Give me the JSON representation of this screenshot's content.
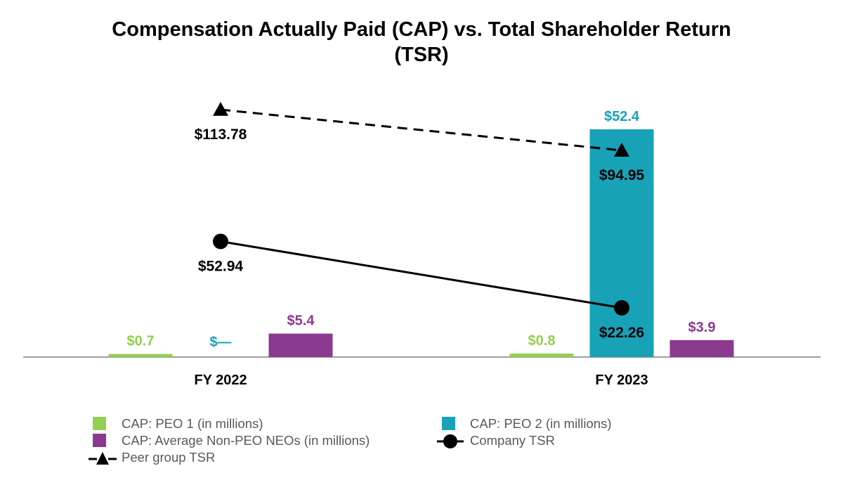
{
  "title_lines": [
    "Compensation Actually Paid (CAP) vs. Total Shareholder Return",
    "(TSR)"
  ],
  "chart_data": {
    "type": "bar",
    "categories": [
      "FY 2022",
      "FY 2023"
    ],
    "bar_axis": {
      "ylim": [
        0,
        60
      ],
      "unit": "$ millions"
    },
    "line_axis": {
      "ylim": [
        0,
        130
      ],
      "unit": "$"
    },
    "series": [
      {
        "name": "CAP: PEO 1 (in millions)",
        "kind": "bar",
        "color": "#92D050",
        "values": [
          0.7,
          0.8
        ],
        "labels": [
          "$0.7",
          "$0.8"
        ]
      },
      {
        "name": "CAP: PEO 2 (in millions)",
        "kind": "bar",
        "color": "#17A2B8",
        "values": [
          0,
          52.4
        ],
        "labels": [
          "$—",
          "$52.4"
        ]
      },
      {
        "name": "CAP: Average Non-PEO NEOs (in millions)",
        "kind": "bar",
        "color": "#8B3A8F",
        "values": [
          5.4,
          3.9
        ],
        "labels": [
          "$5.4",
          "$3.9"
        ]
      },
      {
        "name": "Company TSR",
        "kind": "line",
        "marker": "circle",
        "dash": "solid",
        "color": "#000000",
        "values": [
          52.94,
          22.26
        ],
        "labels": [
          "$52.94",
          "$22.26"
        ]
      },
      {
        "name": "Peer group TSR",
        "kind": "line",
        "marker": "triangle",
        "dash": "dashed",
        "color": "#000000",
        "values": [
          113.78,
          94.95
        ],
        "labels": [
          "$113.78",
          "$94.95"
        ]
      }
    ],
    "legend_position": "bottom"
  }
}
